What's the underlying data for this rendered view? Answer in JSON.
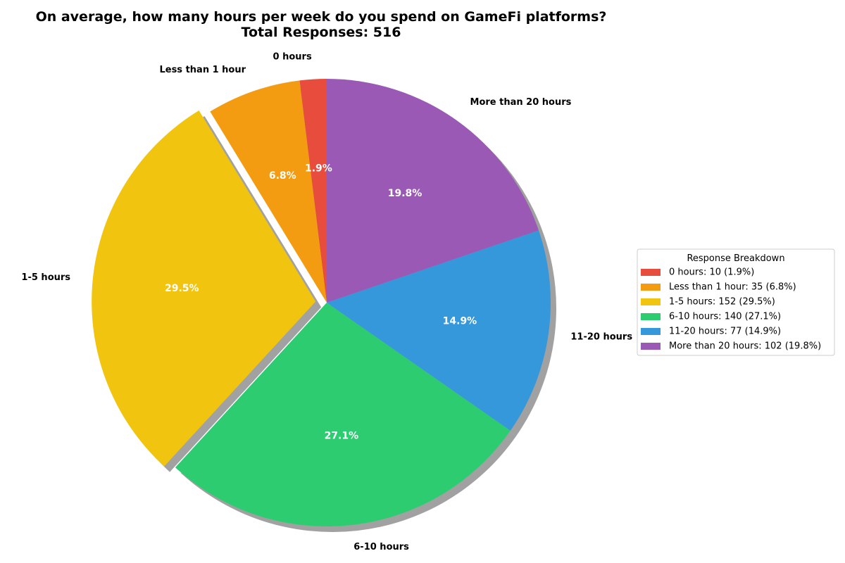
{
  "chart_data": {
    "type": "pie",
    "title": "On average, how many hours per week do you spend on GameFi platforms?",
    "subtitle": "Total Responses: 516",
    "categories": [
      "0 hours",
      "Less than 1 hour",
      "1-5 hours",
      "6-10 hours",
      "11-20 hours",
      "More than 20 hours"
    ],
    "values": [
      10,
      35,
      152,
      140,
      77,
      102
    ],
    "percent_labels": [
      "1.9%",
      "6.8%",
      "29.5%",
      "27.1%",
      "14.9%",
      "19.8%"
    ],
    "colors": [
      "#e74c3c",
      "#f39c12",
      "#f1c40f",
      "#2ecc71",
      "#3498db",
      "#9b59b6"
    ],
    "exploded": [
      false,
      false,
      true,
      false,
      false,
      false
    ],
    "start_angle_deg": 90,
    "direction": "counterclockwise",
    "shadow": true,
    "legend": {
      "title": "Response Breakdown",
      "placement": "right",
      "entries": [
        "0 hours: 10 (1.9%)",
        "Less than 1 hour: 35 (6.8%)",
        "1-5 hours: 152 (29.5%)",
        "6-10 hours: 140 (27.1%)",
        "11-20 hours: 77 (14.9%)",
        "More than 20 hours: 102 (19.8%)"
      ]
    }
  }
}
